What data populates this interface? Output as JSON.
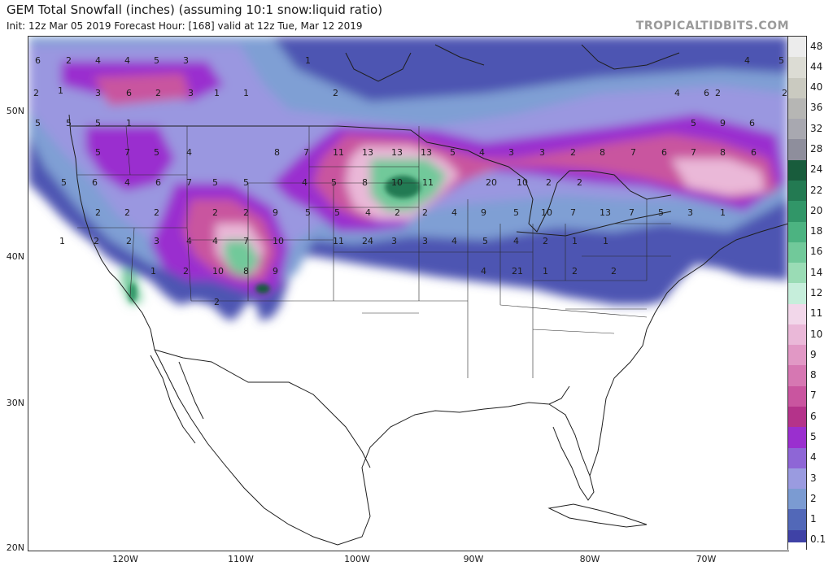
{
  "header": {
    "title": "GEM Total Snowfall (inches) (assuming 10:1 snow:liquid ratio)",
    "subtitle": "Init: 12z Mar 05 2019   Forecast Hour: [168]   valid at 12z Tue, Mar 12 2019",
    "brand": "TROPICALTIDBITS.COM"
  },
  "axes": {
    "lat_labels": [
      "50N",
      "40N",
      "30N",
      "20N"
    ],
    "lon_labels": [
      "120W",
      "110W",
      "100W",
      "90W",
      "80W",
      "70W"
    ]
  },
  "colorbar": {
    "units": "inches",
    "levels": [
      {
        "label": "48",
        "color": "#ececec"
      },
      {
        "label": "44",
        "color": "#dcdcd4"
      },
      {
        "label": "40",
        "color": "#cacac0"
      },
      {
        "label": "36",
        "color": "#b6b6b4"
      },
      {
        "label": "32",
        "color": "#a8a8b0"
      },
      {
        "label": "28",
        "color": "#8e8e9c"
      },
      {
        "label": "24",
        "color": "#185c3c"
      },
      {
        "label": "22",
        "color": "#237a52"
      },
      {
        "label": "20",
        "color": "#319668"
      },
      {
        "label": "18",
        "color": "#4cb381"
      },
      {
        "label": "16",
        "color": "#71c99a"
      },
      {
        "label": "14",
        "color": "#9adcb5"
      },
      {
        "label": "12",
        "color": "#c6eedb"
      },
      {
        "label": "11",
        "color": "#f2d7ea"
      },
      {
        "label": "10",
        "color": "#eab8d8"
      },
      {
        "label": "9",
        "color": "#e198c5"
      },
      {
        "label": "8",
        "color": "#d677b2"
      },
      {
        "label": "7",
        "color": "#c9559f"
      },
      {
        "label": "6",
        "color": "#b4338a"
      },
      {
        "label": "5",
        "color": "#9a2fcf"
      },
      {
        "label": "4",
        "color": "#8e66d6"
      },
      {
        "label": "3",
        "color": "#9a9be0"
      },
      {
        "label": "2",
        "color": "#7b9bd2"
      },
      {
        "label": "1",
        "color": "#5268b8"
      },
      {
        "label": "0.1",
        "color": "#3f42a6"
      }
    ]
  },
  "map": {
    "plains_max_label": "20",
    "snow_labels": [
      "6",
      "2",
      "4",
      "4",
      "5",
      "3",
      "1",
      "1",
      "2",
      "3",
      "6",
      "2",
      "3",
      "1",
      "1",
      "2",
      "4",
      "5",
      "2",
      "5",
      "5",
      "5",
      "1",
      "5",
      "7",
      "5",
      "4",
      "5",
      "6",
      "4",
      "6",
      "7",
      "5",
      "5",
      "2",
      "2",
      "2",
      "8",
      "7",
      "11",
      "13",
      "13",
      "13",
      "5",
      "4",
      "3",
      "3",
      "2",
      "8",
      "7",
      "6",
      "7",
      "8",
      "6",
      "9",
      "6",
      "5",
      "4",
      "6",
      "2",
      "4",
      "5",
      "8",
      "10",
      "11",
      "20",
      "10",
      "2",
      "2",
      "2",
      "2",
      "9",
      "5",
      "5",
      "4",
      "2",
      "2",
      "4",
      "9",
      "5",
      "10",
      "7",
      "13",
      "7",
      "5",
      "3",
      "1",
      "1",
      "2",
      "2",
      "3",
      "4",
      "4",
      "7",
      "10",
      "11",
      "24",
      "3",
      "3",
      "4",
      "5",
      "4",
      "2",
      "1",
      "1",
      "1",
      "2",
      "10",
      "8",
      "9",
      "4",
      "21",
      "1",
      "2",
      "2",
      "2",
      "2",
      "2"
    ]
  }
}
